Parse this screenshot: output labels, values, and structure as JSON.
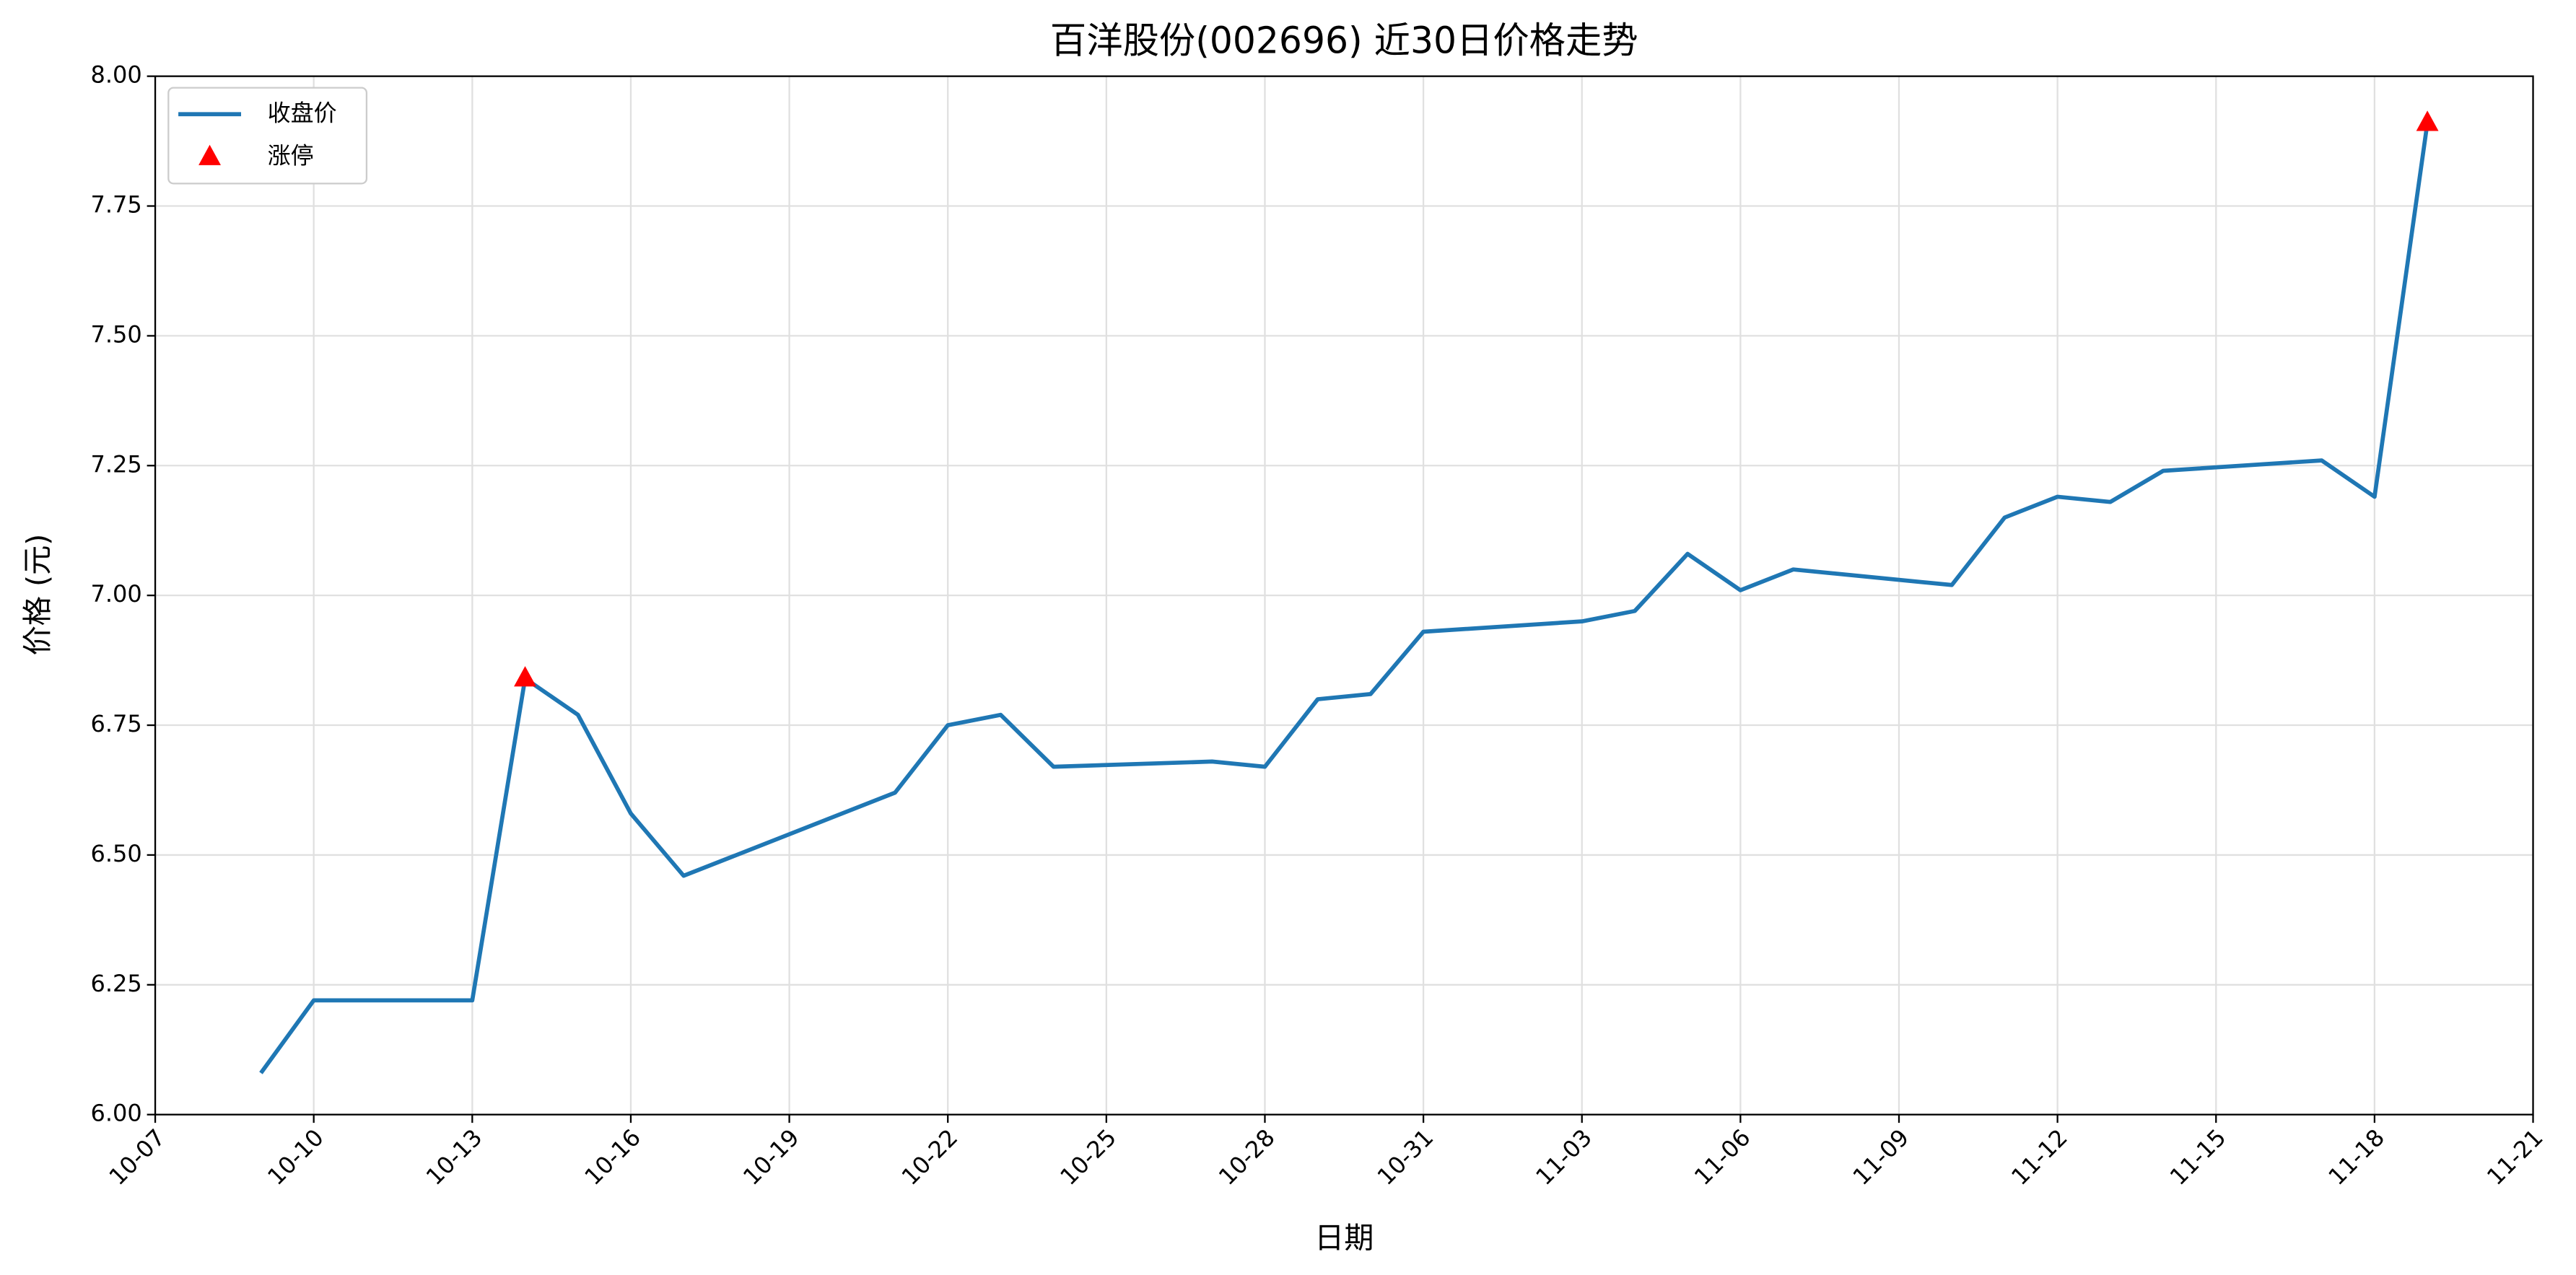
{
  "chart_data": {
    "type": "line",
    "title": "百洋股份(002696) 近30日价格走势",
    "x_label": "日期",
    "y_label": "价格 (元)",
    "x": [
      "10-09",
      "10-10",
      "10-13",
      "10-14",
      "10-15",
      "10-16",
      "10-17",
      "10-21",
      "10-22",
      "10-23",
      "10-24",
      "10-27",
      "10-28",
      "10-29",
      "10-30",
      "10-31",
      "11-03",
      "11-04",
      "11-05",
      "11-06",
      "11-07",
      "11-10",
      "11-11",
      "11-12",
      "11-13",
      "11-14",
      "11-17",
      "11-18",
      "11-19"
    ],
    "series": [
      {
        "name": "收盘价",
        "type": "line",
        "color": "#1f77b4",
        "values": [
          6.08,
          6.22,
          6.22,
          6.84,
          6.77,
          6.58,
          6.46,
          6.62,
          6.75,
          6.77,
          6.67,
          6.68,
          6.67,
          6.8,
          6.81,
          6.93,
          6.95,
          6.97,
          7.08,
          7.01,
          7.05,
          7.02,
          7.15,
          7.19,
          7.18,
          7.24,
          7.26,
          7.19,
          7.91
        ]
      },
      {
        "name": "涨停",
        "type": "scatter",
        "marker": "triangle",
        "color": "#ff0000",
        "x": [
          "10-14",
          "11-19"
        ],
        "values": [
          6.84,
          7.91
        ]
      }
    ],
    "xlim": [
      "10-07",
      "11-21"
    ],
    "xticks": [
      "10-07",
      "10-10",
      "10-13",
      "10-16",
      "10-19",
      "10-22",
      "10-25",
      "10-28",
      "10-31",
      "11-03",
      "11-06",
      "11-09",
      "11-12",
      "11-15",
      "11-18",
      "11-21"
    ],
    "ylim": [
      6.0,
      8.0
    ],
    "yticks": [
      {
        "value": 6.0,
        "label": "6.00"
      },
      {
        "value": 6.25,
        "label": "6.25"
      },
      {
        "value": 6.5,
        "label": "6.50"
      },
      {
        "value": 6.75,
        "label": "6.75"
      },
      {
        "value": 7.0,
        "label": "7.00"
      },
      {
        "value": 7.25,
        "label": "7.25"
      },
      {
        "value": 7.5,
        "label": "7.50"
      },
      {
        "value": 7.75,
        "label": "7.75"
      },
      {
        "value": 8.0,
        "label": "8.00"
      }
    ],
    "grid": true,
    "legend": "upper left"
  }
}
